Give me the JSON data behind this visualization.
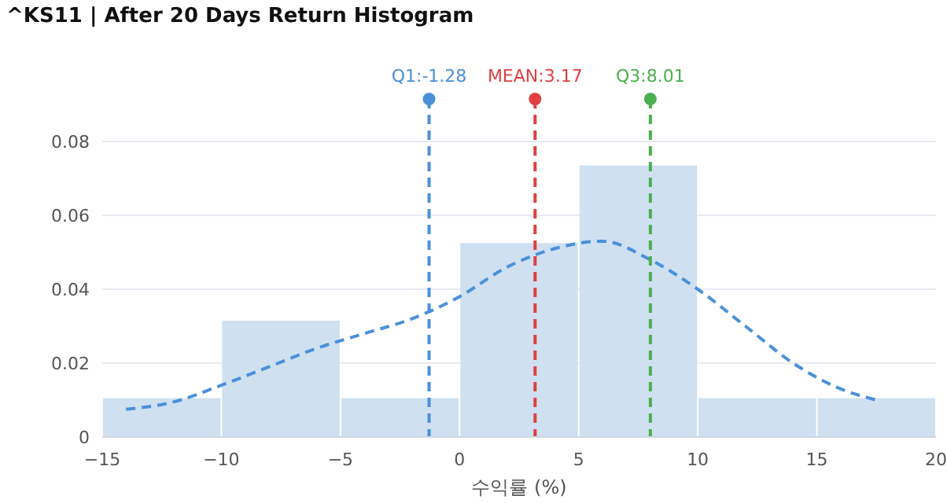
{
  "chart_data": {
    "type": "histogram",
    "title": "^KS11 | After 20 Days Return Histogram",
    "xlabel": "수익률 (%)",
    "bins": [
      -15,
      -10,
      -5,
      0,
      5,
      10,
      15,
      20
    ],
    "values": [
      0.0105,
      0.0315,
      0.0105,
      0.0525,
      0.0735,
      0.0105,
      0.0105
    ],
    "color": "#cfe0f1",
    "series": [
      {
        "type": "line",
        "color": "#4a90d9",
        "line_style": "dashed",
        "x": [
          -14,
          -12,
          -10,
          -8,
          -6,
          -4,
          -2,
          0,
          2,
          4,
          6,
          8,
          10,
          12,
          14,
          16,
          17.5
        ],
        "values": [
          0.0075,
          0.0095,
          0.014,
          0.019,
          0.024,
          0.028,
          0.032,
          0.038,
          0.046,
          0.051,
          0.053,
          0.048,
          0.04,
          0.03,
          0.02,
          0.013,
          0.01
        ]
      }
    ],
    "ref_lines": [
      {
        "axis": "x",
        "value": -1.28,
        "label": "Q1:-1.28",
        "color": "#4a90d9",
        "line_style": "dashed"
      },
      {
        "axis": "x",
        "value": 3.17,
        "label": "MEAN:3.17",
        "color": "#e04040",
        "line_style": "dashed"
      },
      {
        "axis": "x",
        "value": 8.01,
        "label": "Q3:8.01",
        "color": "#4caf50",
        "line_style": "dashed"
      }
    ],
    "xlim": [
      -15,
      20
    ],
    "xticks": [
      {
        "value": -15,
        "label": "−15"
      },
      {
        "value": -10,
        "label": "−10"
      },
      {
        "value": -5,
        "label": "−5"
      },
      0,
      5,
      10,
      15,
      20
    ],
    "ylim": [
      0,
      0.08
    ],
    "yticks": [
      0,
      0.02,
      0.04,
      0.06,
      0.08
    ],
    "grid": "y"
  }
}
